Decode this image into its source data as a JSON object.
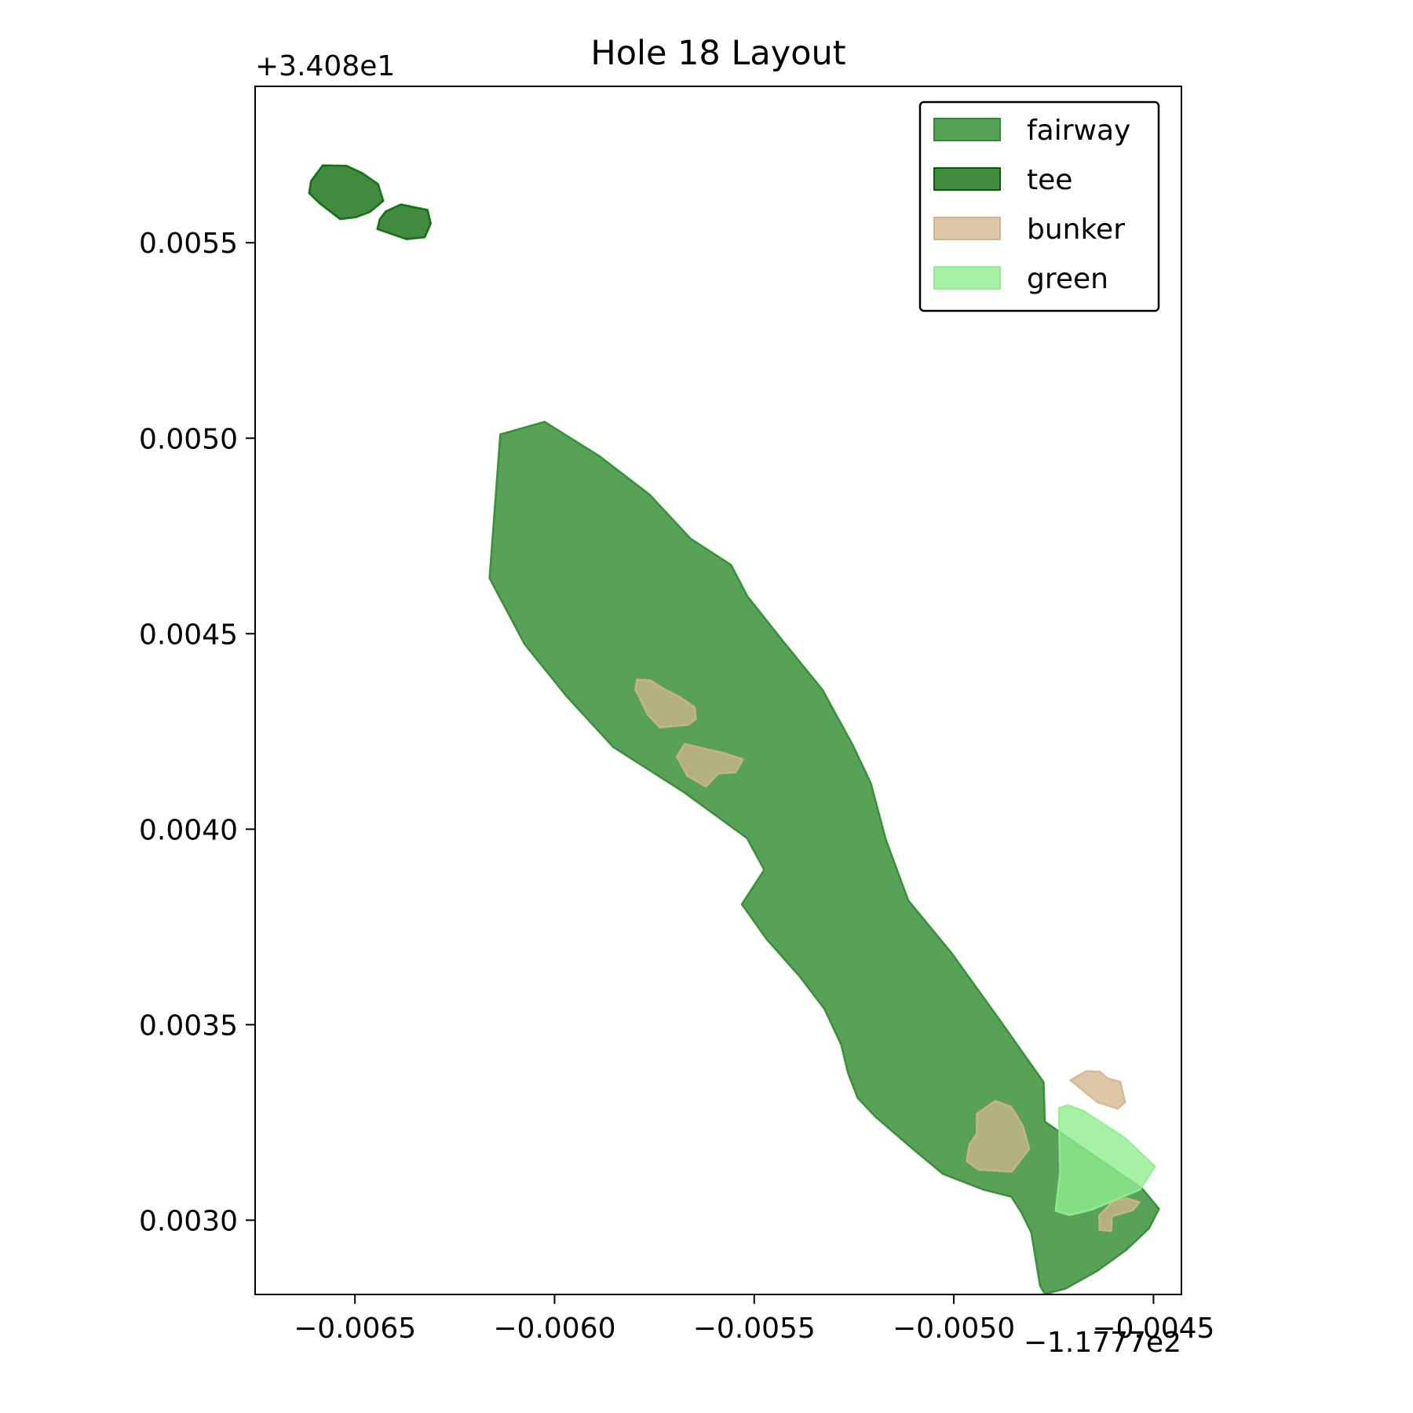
{
  "chart_data": {
    "type": "map",
    "title": "Hole 18 Layout",
    "xlabel": "",
    "ylabel": "",
    "x_offset_label": "−1.1777e2",
    "y_offset_label": "+3.408e1",
    "xlim": [
      -0.00675,
      -0.00443
    ],
    "ylim": [
      0.00281,
      0.0059
    ],
    "x_ticks": [
      {
        "value": -0.0065,
        "label": "−0.0065"
      },
      {
        "value": -0.006,
        "label": "−0.0060"
      },
      {
        "value": -0.0055,
        "label": "−0.0055"
      },
      {
        "value": -0.005,
        "label": "−0.0050"
      },
      {
        "value": -0.0045,
        "label": "−0.0045"
      }
    ],
    "y_ticks": [
      {
        "value": 0.003,
        "label": "0.0030"
      },
      {
        "value": 0.0035,
        "label": "0.0035"
      },
      {
        "value": 0.004,
        "label": "0.0040"
      },
      {
        "value": 0.0045,
        "label": "0.0045"
      },
      {
        "value": 0.005,
        "label": "0.0050"
      },
      {
        "value": 0.0055,
        "label": "0.0055"
      }
    ],
    "grid": false,
    "legend_position": "top-right",
    "legend": [
      {
        "label": "fairway",
        "fill": "#2e8b2e",
        "stroke": "#2e8b2e",
        "opacity": 0.8
      },
      {
        "label": "tee",
        "fill": "#006400",
        "stroke": "#006400",
        "opacity": 0.75
      },
      {
        "label": "bunker",
        "fill": "#d2b48c",
        "stroke": "#d2b48c",
        "opacity": 0.75
      },
      {
        "label": "green",
        "fill": "#90ee90",
        "stroke": "#90ee90",
        "opacity": 0.8
      }
    ],
    "features": [
      {
        "type": "fairway",
        "points": [
          [
            -0.006136,
            0.00501
          ],
          [
            -0.006025,
            0.005042
          ],
          [
            -0.005887,
            0.004954
          ],
          [
            -0.005762,
            0.004856
          ],
          [
            -0.005659,
            0.004743
          ],
          [
            -0.005558,
            0.004676
          ],
          [
            -0.005517,
            0.004596
          ],
          [
            -0.005428,
            0.004481
          ],
          [
            -0.005329,
            0.004357
          ],
          [
            -0.005253,
            0.004215
          ],
          [
            -0.005208,
            0.004118
          ],
          [
            -0.00517,
            0.003973
          ],
          [
            -0.005114,
            0.003818
          ],
          [
            -0.005006,
            0.003684
          ],
          [
            -0.004885,
            0.003512
          ],
          [
            -0.004775,
            0.003353
          ],
          [
            -0.004772,
            0.003252
          ],
          [
            -0.004679,
            0.003186
          ],
          [
            -0.004529,
            0.003082
          ],
          [
            -0.004486,
            0.003029
          ],
          [
            -0.004511,
            0.002979
          ],
          [
            -0.004568,
            0.002924
          ],
          [
            -0.004641,
            0.00287
          ],
          [
            -0.00472,
            0.002825
          ],
          [
            -0.004772,
            0.002811
          ],
          [
            -0.004784,
            0.002832
          ],
          [
            -0.004806,
            0.002968
          ],
          [
            -0.004831,
            0.00302
          ],
          [
            -0.004856,
            0.00306
          ],
          [
            -0.004926,
            0.003078
          ],
          [
            -0.005027,
            0.003118
          ],
          [
            -0.005104,
            0.003183
          ],
          [
            -0.005198,
            0.003266
          ],
          [
            -0.005241,
            0.003313
          ],
          [
            -0.005265,
            0.003376
          ],
          [
            -0.005282,
            0.003448
          ],
          [
            -0.005324,
            0.00354
          ],
          [
            -0.005386,
            0.003623
          ],
          [
            -0.005469,
            0.003719
          ],
          [
            -0.005531,
            0.003808
          ],
          [
            -0.005475,
            0.003896
          ],
          [
            -0.005518,
            0.003977
          ],
          [
            -0.005677,
            0.004095
          ],
          [
            -0.005853,
            0.00421
          ],
          [
            -0.00597,
            0.00434
          ],
          [
            -0.006075,
            0.004473
          ],
          [
            -0.006163,
            0.004642
          ]
        ]
      },
      {
        "type": "tee",
        "points": [
          [
            -0.00661,
            0.005658
          ],
          [
            -0.006581,
            0.005698
          ],
          [
            -0.006521,
            0.005697
          ],
          [
            -0.006481,
            0.005678
          ],
          [
            -0.006442,
            0.00565
          ],
          [
            -0.006429,
            0.005607
          ],
          [
            -0.006462,
            0.005579
          ],
          [
            -0.006498,
            0.005565
          ],
          [
            -0.006537,
            0.00556
          ],
          [
            -0.006589,
            0.005601
          ],
          [
            -0.006615,
            0.005627
          ]
        ]
      },
      {
        "type": "tee",
        "points": [
          [
            -0.006444,
            0.005535
          ],
          [
            -0.006371,
            0.005509
          ],
          [
            -0.006325,
            0.005514
          ],
          [
            -0.00631,
            0.005549
          ],
          [
            -0.006318,
            0.005584
          ],
          [
            -0.006385,
            0.005598
          ],
          [
            -0.006423,
            0.00558
          ],
          [
            -0.006438,
            0.00556
          ]
        ]
      },
      {
        "type": "bunker",
        "points": [
          [
            -0.005793,
            0.004383
          ],
          [
            -0.00576,
            0.004381
          ],
          [
            -0.005725,
            0.004358
          ],
          [
            -0.005689,
            0.00434
          ],
          [
            -0.005649,
            0.004312
          ],
          [
            -0.005646,
            0.004282
          ],
          [
            -0.005665,
            0.004267
          ],
          [
            -0.005736,
            0.00426
          ],
          [
            -0.005766,
            0.004292
          ],
          [
            -0.005789,
            0.004341
          ],
          [
            -0.005798,
            0.004357
          ]
        ]
      },
      {
        "type": "bunker",
        "points": [
          [
            -0.005674,
            0.004218
          ],
          [
            -0.005574,
            0.004194
          ],
          [
            -0.005528,
            0.004179
          ],
          [
            -0.005547,
            0.004145
          ],
          [
            -0.005589,
            0.004143
          ],
          [
            -0.005621,
            0.004109
          ],
          [
            -0.005667,
            0.004136
          ],
          [
            -0.005694,
            0.004186
          ]
        ]
      },
      {
        "type": "bunker",
        "points": [
          [
            -0.004942,
            0.003273
          ],
          [
            -0.004896,
            0.003305
          ],
          [
            -0.004856,
            0.00329
          ],
          [
            -0.004827,
            0.00324
          ],
          [
            -0.004811,
            0.003183
          ],
          [
            -0.004855,
            0.003124
          ],
          [
            -0.004938,
            0.003129
          ],
          [
            -0.004968,
            0.003151
          ],
          [
            -0.004961,
            0.003193
          ],
          [
            -0.004943,
            0.003221
          ]
        ]
      },
      {
        "type": "bunker",
        "points": [
          [
            -0.004708,
            0.003358
          ],
          [
            -0.004669,
            0.003381
          ],
          [
            -0.004635,
            0.00338
          ],
          [
            -0.004615,
            0.003363
          ],
          [
            -0.004583,
            0.003354
          ],
          [
            -0.004571,
            0.003302
          ],
          [
            -0.00459,
            0.003285
          ],
          [
            -0.004641,
            0.003302
          ]
        ]
      },
      {
        "type": "bunker",
        "points": [
          [
            -0.004636,
            0.003012
          ],
          [
            -0.0046,
            0.00305
          ],
          [
            -0.004567,
            0.003056
          ],
          [
            -0.004535,
            0.003046
          ],
          [
            -0.004552,
            0.003025
          ],
          [
            -0.004604,
            0.00301
          ],
          [
            -0.004606,
            0.002972
          ],
          [
            -0.004635,
            0.002975
          ]
        ]
      },
      {
        "type": "green",
        "points": [
          [
            -0.004737,
            0.003286
          ],
          [
            -0.004715,
            0.003294
          ],
          [
            -0.004676,
            0.00328
          ],
          [
            -0.004571,
            0.00321
          ],
          [
            -0.004496,
            0.003137
          ],
          [
            -0.004534,
            0.003078
          ],
          [
            -0.004654,
            0.003027
          ],
          [
            -0.00471,
            0.003013
          ],
          [
            -0.004745,
            0.003024
          ],
          [
            -0.004734,
            0.003122
          ]
        ]
      }
    ]
  }
}
